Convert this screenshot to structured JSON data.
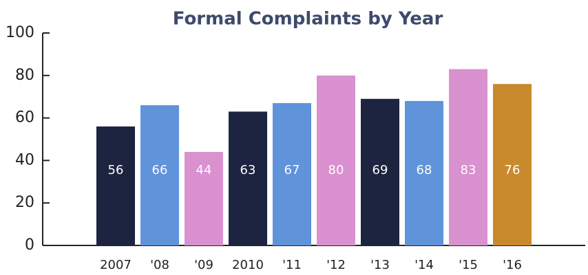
{
  "chart_data": {
    "type": "bar",
    "title": "Formal Complaints by Year",
    "categories": [
      "2007",
      "'08",
      "'09",
      "2010",
      "'11",
      "'12",
      "'13",
      "'14",
      "'15",
      "'16"
    ],
    "values": [
      56,
      66,
      44,
      63,
      67,
      80,
      69,
      68,
      83,
      76
    ],
    "colors": [
      "#1d2440",
      "#5f93da",
      "#d991cf",
      "#1d2440",
      "#5f93da",
      "#d991cf",
      "#1d2440",
      "#5f93da",
      "#d991cf",
      "#c88a2c"
    ],
    "ylim": [
      0,
      100
    ],
    "yticks": [
      0,
      20,
      40,
      60,
      80,
      100
    ],
    "grid": false
  }
}
